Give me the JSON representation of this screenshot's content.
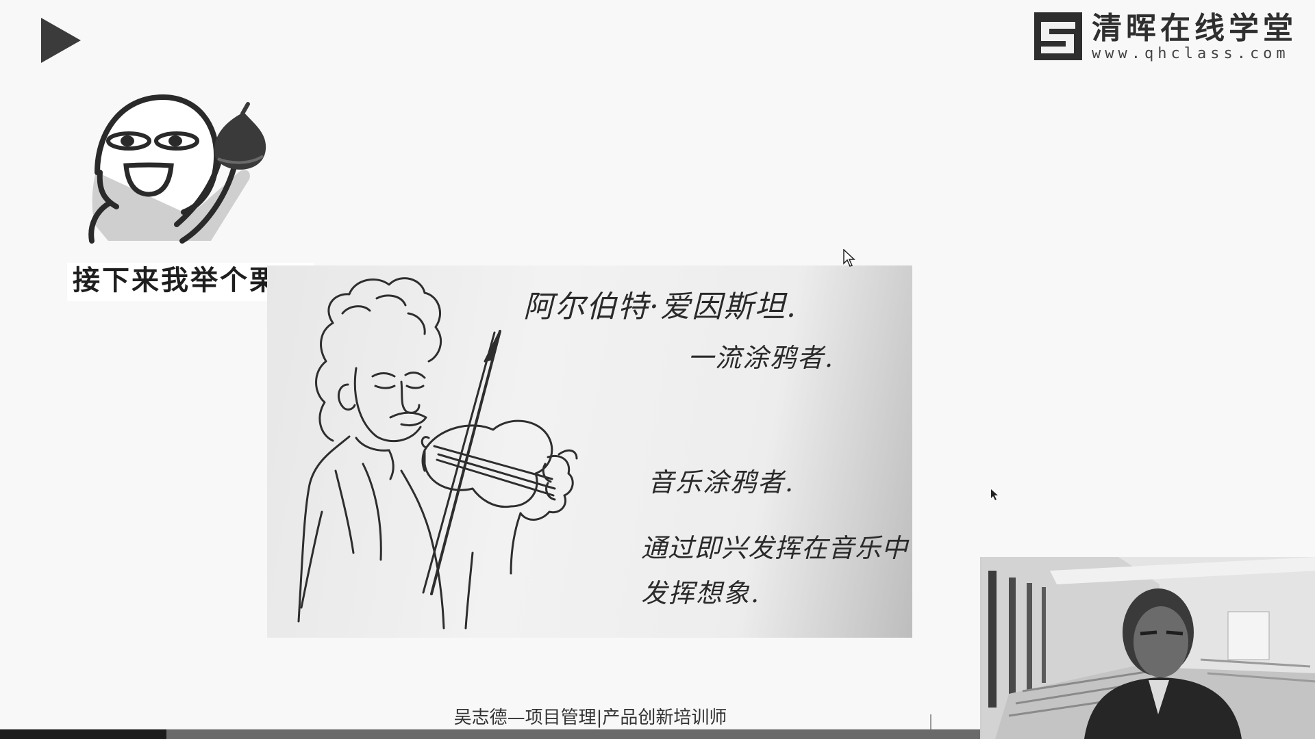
{
  "logo": {
    "name": "清晖在线学堂",
    "url": "www.qhclass.com"
  },
  "meme": {
    "caption": "接下来我举个栗子"
  },
  "sketch": {
    "lines": [
      "阿尔伯特·爱因斯坦.",
      "一流涂鸦者.",
      "音乐涂鸦者.",
      "通过即兴发挥在音乐中",
      "发挥想象."
    ]
  },
  "footer": {
    "presenter": "吴志德—项目管理|产品创新培训师"
  },
  "player": {
    "progress_fraction": 0.17
  },
  "colors": {
    "background": "#f8f8f8",
    "ink": "#2a2a2a",
    "progress_track": "#6a6a6a",
    "progress_fill": "#1c1c1c"
  },
  "icons": [
    "play-icon",
    "logo-icon",
    "mouse-cursor-icon"
  ]
}
